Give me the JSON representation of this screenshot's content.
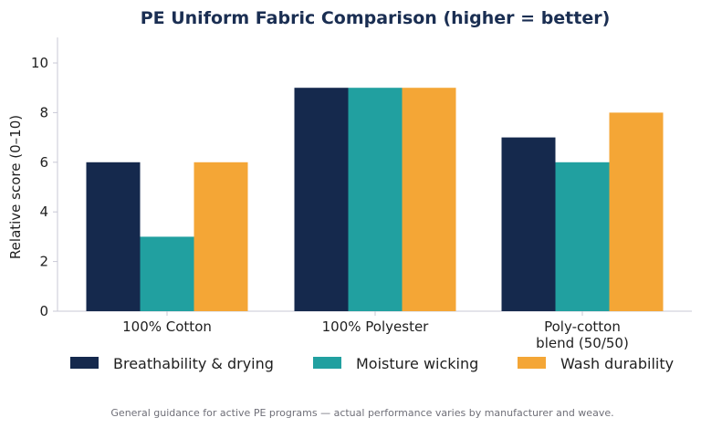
{
  "chart_data": {
    "type": "bar",
    "title": "PE Uniform Fabric Comparison (higher = better)",
    "ylabel": "Relative score (0–10)",
    "xlabel": "",
    "ylim": [
      0,
      11
    ],
    "yticks": [
      0,
      2,
      4,
      6,
      8,
      10
    ],
    "categories": [
      [
        "100% Cotton"
      ],
      [
        "100% Polyester"
      ],
      [
        "Poly-cotton",
        "blend (50/50)"
      ]
    ],
    "series": [
      {
        "name": "Breathability & drying",
        "color": "#15294d",
        "values": [
          6,
          9,
          7
        ]
      },
      {
        "name": "Moisture wicking",
        "color": "#21a0a0",
        "values": [
          3,
          9,
          6
        ]
      },
      {
        "name": "Wash durability",
        "color": "#f4a636",
        "values": [
          6,
          9,
          8
        ]
      }
    ],
    "legend_position": "bottom",
    "grid": false,
    "footnote": "General guidance for active PE programs — actual performance varies by manufacturer and weave."
  }
}
